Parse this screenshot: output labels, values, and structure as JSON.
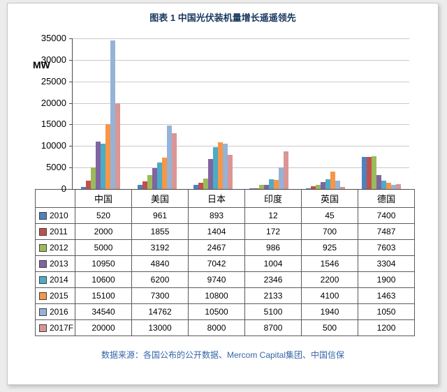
{
  "title": "图表 1 中国光伏装机量增长遥遥领先",
  "footer": "数据来源：各国公布的公开数据、Mercom Capital集团、中国信保",
  "chart_data": {
    "type": "bar",
    "title": "图表 1 中国光伏装机量增长遥遥领先",
    "xlabel": "",
    "ylabel": "MW",
    "ylim": [
      0,
      35000
    ],
    "ytick_step": 5000,
    "grid": true,
    "legend_position": "table-left",
    "categories": [
      "中国",
      "美国",
      "日本",
      "印度",
      "英国",
      "德国"
    ],
    "series": [
      {
        "name": "2010",
        "color": "#4F81BD",
        "values": [
          520,
          961,
          893,
          12,
          45,
          7400
        ]
      },
      {
        "name": "2011",
        "color": "#C0504D",
        "values": [
          2000,
          1855,
          1404,
          172,
          700,
          7487
        ]
      },
      {
        "name": "2012",
        "color": "#9BBB59",
        "values": [
          5000,
          3192,
          2467,
          986,
          925,
          7603
        ]
      },
      {
        "name": "2013",
        "color": "#8064A2",
        "values": [
          10950,
          4840,
          7042,
          1004,
          1546,
          3304
        ]
      },
      {
        "name": "2014",
        "color": "#4BACC6",
        "values": [
          10600,
          6200,
          9740,
          2346,
          2200,
          1900
        ]
      },
      {
        "name": "2015",
        "color": "#F79646",
        "values": [
          15100,
          7300,
          10800,
          2133,
          4100,
          1463
        ]
      },
      {
        "name": "2016",
        "color": "#95B3D7",
        "values": [
          34540,
          14762,
          10500,
          5100,
          1940,
          1050
        ]
      },
      {
        "name": "2017F",
        "color": "#D99694",
        "values": [
          20000,
          13000,
          8000,
          8700,
          500,
          1200
        ]
      }
    ]
  }
}
